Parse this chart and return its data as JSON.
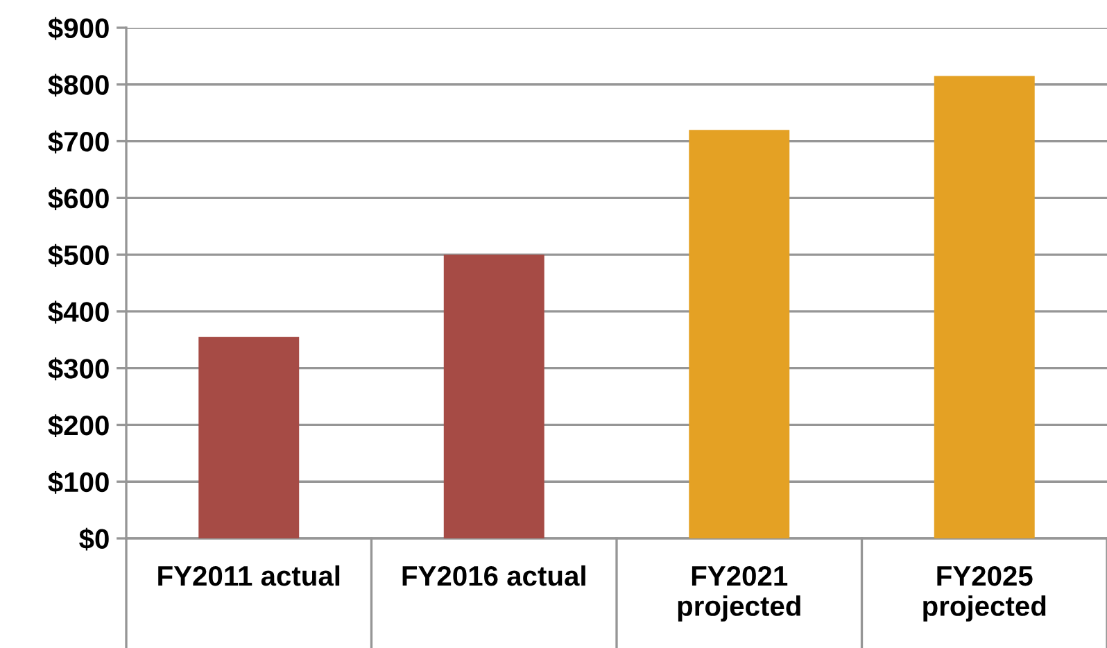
{
  "chart_data": {
    "type": "bar",
    "categories": [
      "FY2011 actual",
      "FY2016 actual",
      "FY2021\nprojected",
      "FY2025\nprojected"
    ],
    "values": [
      355,
      500,
      720,
      815
    ],
    "colors": [
      "#a64b45",
      "#a64b45",
      "#e4a124",
      "#e4a124"
    ],
    "ylim": [
      0,
      900
    ],
    "yticks": [
      {
        "value": 0,
        "label": "$0"
      },
      {
        "value": 100,
        "label": "$100"
      },
      {
        "value": 200,
        "label": "$200"
      },
      {
        "value": 300,
        "label": "$300"
      },
      {
        "value": 400,
        "label": "$400"
      },
      {
        "value": 500,
        "label": "$500"
      },
      {
        "value": 600,
        "label": "$600"
      },
      {
        "value": 700,
        "label": "$700"
      },
      {
        "value": 800,
        "label": "$800"
      },
      {
        "value": 900,
        "label": "$900"
      }
    ],
    "grid": "y",
    "legend": false
  }
}
